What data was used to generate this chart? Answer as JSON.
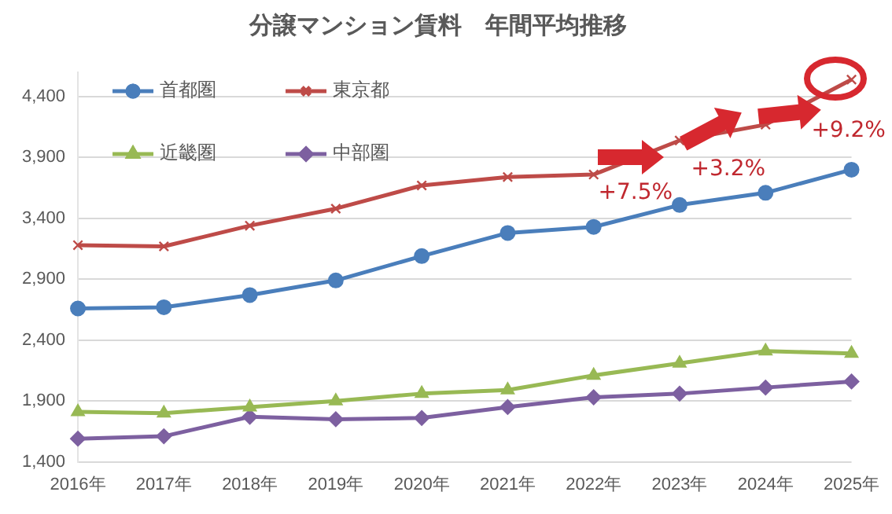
{
  "chart_data": {
    "type": "line",
    "title": "分譲マンション賃料　年間平均推移",
    "categories": [
      "2016年",
      "2017年",
      "2018年",
      "2019年",
      "2020年",
      "2021年",
      "2022年",
      "2023年",
      "2024年",
      "2025年"
    ],
    "series": [
      {
        "name": "首都圏",
        "color": "#4a7ebb",
        "marker": "circle",
        "values": [
          2660,
          2670,
          2770,
          2890,
          3090,
          3280,
          3330,
          3510,
          3610,
          3800
        ]
      },
      {
        "name": "東京都",
        "color": "#be4b48",
        "marker": "cross",
        "values": [
          3180,
          3170,
          3340,
          3480,
          3670,
          3740,
          3760,
          4040,
          4170,
          4540
        ]
      },
      {
        "name": "近畿圏",
        "color": "#98b954",
        "marker": "triangle",
        "values": [
          1810,
          1800,
          1850,
          1900,
          1960,
          1990,
          2110,
          2210,
          2310,
          2290
        ]
      },
      {
        "name": "中部圏",
        "color": "#7d60a0",
        "marker": "diamond",
        "values": [
          1590,
          1610,
          1770,
          1750,
          1760,
          1850,
          1930,
          1960,
          2010,
          2060
        ]
      }
    ],
    "ylim": [
      1400,
      4600
    ],
    "yticks": [
      {
        "value": 1400,
        "label": "1,400"
      },
      {
        "value": 1900,
        "label": "1,900"
      },
      {
        "value": 2400,
        "label": "2,400"
      },
      {
        "value": 2900,
        "label": "2,900"
      },
      {
        "value": 3400,
        "label": "3,400"
      },
      {
        "value": 3900,
        "label": "3,900"
      },
      {
        "value": 4400,
        "label": "4,400"
      }
    ],
    "grid": "y",
    "legend": "top left",
    "annotations": [
      "+7.5%",
      "+3.2%",
      "+9.2%"
    ]
  }
}
